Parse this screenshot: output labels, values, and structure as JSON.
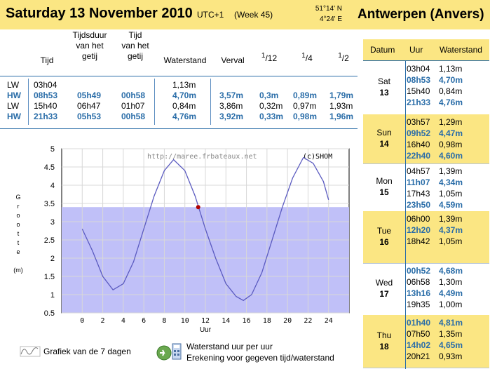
{
  "header": {
    "title": "Saturday 13 November 2010",
    "utc": "UTC+1",
    "week": "(Week 45)",
    "lat": "51°14' N",
    "lon": "4°24' E",
    "place": "Antwerpen (Anvers)"
  },
  "table": {
    "col_tijd": "Tijd",
    "col_tijdsduur": [
      "Tijdsduur",
      "van het",
      "getij"
    ],
    "col_tijdvan": [
      "Tijd",
      "van het",
      "getij"
    ],
    "col_waterstand": "Waterstand",
    "col_verval": "Verval",
    "col_f12": [
      "1",
      "/12"
    ],
    "col_f4": [
      "1",
      "/4"
    ],
    "col_f2": [
      "1",
      "/2"
    ],
    "rows": [
      {
        "type": "LW",
        "time": "03h04",
        "duration": "",
        "tvan": "",
        "height": "1,13m",
        "verval": "",
        "f12": "",
        "f4": "",
        "f2": ""
      },
      {
        "type": "HW",
        "time": "08h53",
        "duration": "05h49",
        "tvan": "00h58",
        "height": "4,70m",
        "verval": "3,57m",
        "f12": "0,3m",
        "f4": "0,89m",
        "f2": "1,79m"
      },
      {
        "type": "LW",
        "time": "15h40",
        "duration": "06h47",
        "tvan": "01h07",
        "height": "0,84m",
        "verval": "3,86m",
        "f12": "0,32m",
        "f4": "0,97m",
        "f2": "1,93m"
      },
      {
        "type": "HW",
        "time": "21h33",
        "duration": "05h53",
        "tvan": "00h58",
        "height": "4,76m",
        "verval": "3,92m",
        "f12": "0,33m",
        "f4": "0,98m",
        "f2": "1,96m"
      }
    ]
  },
  "right_panel": {
    "head_datum": "Datum",
    "head_uur": "Uur",
    "head_waterstand": "Waterstand",
    "days": [
      {
        "name": "Sat",
        "num": "13",
        "yellow": false,
        "tides": [
          [
            "03h04",
            "1,13m",
            false
          ],
          [
            "08h53",
            "4,70m",
            true
          ],
          [
            "15h40",
            "0,84m",
            false
          ],
          [
            "21h33",
            "4,76m",
            true
          ]
        ]
      },
      {
        "name": "Sun",
        "num": "14",
        "yellow": true,
        "tides": [
          [
            "03h57",
            "1,29m",
            false
          ],
          [
            "09h52",
            "4,47m",
            true
          ],
          [
            "16h40",
            "0,98m",
            false
          ],
          [
            "22h40",
            "4,60m",
            true
          ]
        ]
      },
      {
        "name": "Mon",
        "num": "15",
        "yellow": false,
        "tides": [
          [
            "04h57",
            "1,39m",
            false
          ],
          [
            "11h07",
            "4,34m",
            true
          ],
          [
            "17h43",
            "1,05m",
            false
          ],
          [
            "23h50",
            "4,59m",
            true
          ]
        ]
      },
      {
        "name": "Tue",
        "num": "16",
        "yellow": true,
        "tides": [
          [
            "06h00",
            "1,39m",
            false
          ],
          [
            "12h20",
            "4,37m",
            true
          ],
          [
            "18h42",
            "1,05m",
            false
          ]
        ]
      },
      {
        "name": "Wed",
        "num": "17",
        "yellow": false,
        "tides": [
          [
            "00h52",
            "4,68m",
            true
          ],
          [
            "06h58",
            "1,30m",
            false
          ],
          [
            "13h16",
            "4,49m",
            true
          ],
          [
            "19h35",
            "1,00m",
            false
          ]
        ]
      },
      {
        "name": "Thu",
        "num": "18",
        "yellow": true,
        "tides": [
          [
            "01h40",
            "4,81m",
            true
          ],
          [
            "07h50",
            "1,35m",
            false
          ],
          [
            "14h02",
            "4,65m",
            true
          ],
          [
            "20h21",
            "0,93m",
            false
          ]
        ]
      }
    ]
  },
  "chart_data": {
    "type": "line",
    "xlabel": "Uur",
    "ylabel": "Grootte (m)",
    "ylabel_letters": [
      "G",
      "r",
      "o",
      "o",
      "t",
      "t",
      "e"
    ],
    "ylabel_unit": "(m)",
    "xticks": [
      0,
      2,
      4,
      6,
      8,
      10,
      12,
      14,
      16,
      18,
      20,
      22,
      24
    ],
    "yticks": [
      0.5,
      1,
      1.5,
      2,
      2.5,
      3,
      3.5,
      4,
      4.5,
      5
    ],
    "ytick_labels": [
      "0.5",
      "1",
      "1.5",
      "2",
      "2.5",
      "3",
      "3.5",
      "4",
      "4.5",
      "5"
    ],
    "xlim": [
      -2,
      26
    ],
    "ylim": [
      0.5,
      5
    ],
    "current_level": 3.4,
    "current_time": 11.3,
    "watermark": "http://maree.frbateaux.net",
    "copyright": "(c)SHOM",
    "series": [
      {
        "values": [
          [
            0,
            2.8
          ],
          [
            1,
            2.2
          ],
          [
            2,
            1.5
          ],
          [
            3,
            1.13
          ],
          [
            4,
            1.3
          ],
          [
            5,
            1.9
          ],
          [
            6,
            2.8
          ],
          [
            7,
            3.7
          ],
          [
            8,
            4.4
          ],
          [
            8.9,
            4.7
          ],
          [
            10,
            4.4
          ],
          [
            11,
            3.7
          ],
          [
            12,
            2.8
          ],
          [
            13,
            2.0
          ],
          [
            14,
            1.3
          ],
          [
            15,
            0.95
          ],
          [
            15.7,
            0.84
          ],
          [
            16.5,
            1.0
          ],
          [
            17.5,
            1.6
          ],
          [
            18.5,
            2.5
          ],
          [
            19.5,
            3.4
          ],
          [
            20.5,
            4.2
          ],
          [
            21.55,
            4.76
          ],
          [
            22.5,
            4.6
          ],
          [
            23.5,
            4.1
          ],
          [
            24,
            3.6
          ]
        ]
      }
    ]
  },
  "footer": {
    "grafiek": "Grafiek van de 7 dagen",
    "waterstand_uur": "Waterstand uur per uur",
    "erekening": "Erekening voor gegeven tijd/waterstand"
  },
  "colors": {
    "yellow": "#fbe683",
    "blue": "#2a6da8",
    "water": "#c0c0f8",
    "curve": "#5b5bc0",
    "dot": "#b00000"
  }
}
